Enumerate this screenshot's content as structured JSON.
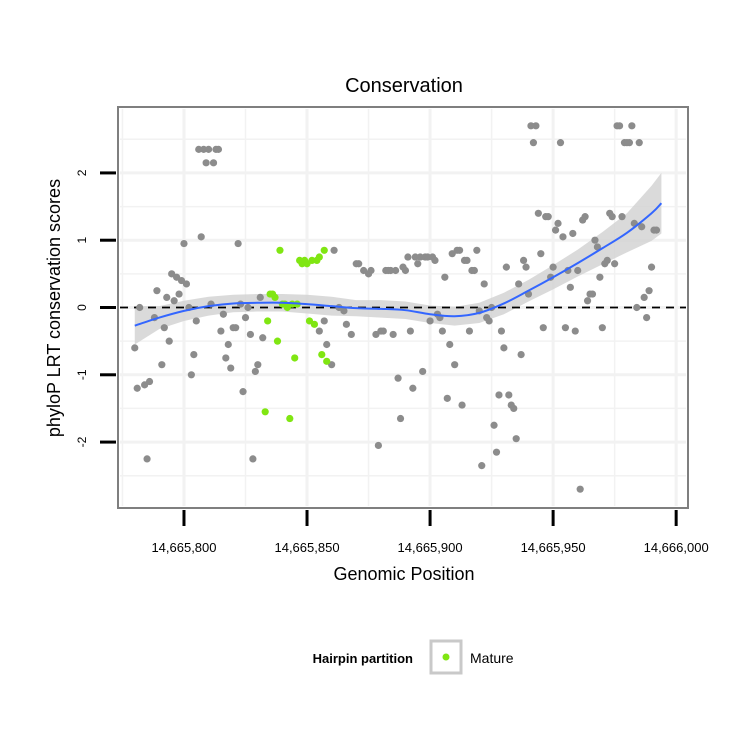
{
  "chart_data": {
    "type": "scatter",
    "title": "Conservation",
    "xlabel": "Genomic Position",
    "ylabel": "phyloP LRT conservation scores",
    "xlim": [
      14665774,
      14666004
    ],
    "ylim": [
      -2.95,
      2.95
    ],
    "x_ticks": [
      14665800,
      14665850,
      14665900,
      14665950,
      14666000
    ],
    "x_tick_labels": [
      "14,665,800",
      "14,665,850",
      "14,665,900",
      "14,665,950",
      "14,666,000"
    ],
    "y_ticks": [
      2,
      1,
      0,
      -1,
      -2
    ],
    "y_tick_labels": [
      "2",
      "1",
      "0",
      "-1",
      "-2"
    ],
    "reference_line": {
      "y": 0,
      "style": "dashed",
      "color": "#000000"
    },
    "colors": {
      "panel_background": "#ffffff",
      "grid": "#f2f2f2",
      "other_points": "#8c8c8c",
      "mature_points": "#80e612",
      "smooth_line": "#3366ff",
      "ribbon": "#d4d4d4"
    },
    "legend": {
      "title": "Hairpin partition",
      "entries": [
        "Mature"
      ],
      "placement": "bottom"
    },
    "series": [
      {
        "name": "Other",
        "points": [
          [
            14665780,
            -0.6
          ],
          [
            14665781,
            -1.2
          ],
          [
            14665782,
            0.0
          ],
          [
            14665784,
            -1.15
          ],
          [
            14665785,
            -2.25
          ],
          [
            14665786,
            -1.1
          ],
          [
            14665788,
            -0.15
          ],
          [
            14665789,
            0.25
          ],
          [
            14665791,
            -0.85
          ],
          [
            14665792,
            -0.3
          ],
          [
            14665793,
            0.15
          ],
          [
            14665794,
            -0.5
          ],
          [
            14665795,
            0.5
          ],
          [
            14665796,
            0.1
          ],
          [
            14665797,
            0.45
          ],
          [
            14665798,
            0.2
          ],
          [
            14665799,
            0.4
          ],
          [
            14665800,
            0.95
          ],
          [
            14665801,
            0.35
          ],
          [
            14665802,
            0.0
          ],
          [
            14665803,
            -1.0
          ],
          [
            14665804,
            -0.7
          ],
          [
            14665805,
            -0.2
          ],
          [
            14665806,
            2.35
          ],
          [
            14665807,
            1.05
          ],
          [
            14665808,
            2.35
          ],
          [
            14665809,
            2.15
          ],
          [
            14665810,
            2.35
          ],
          [
            14665811,
            0.05
          ],
          [
            14665812,
            2.15
          ],
          [
            14665813,
            2.35
          ],
          [
            14665814,
            2.35
          ],
          [
            14665815,
            -0.35
          ],
          [
            14665816,
            -0.1
          ],
          [
            14665817,
            -0.75
          ],
          [
            14665818,
            -0.55
          ],
          [
            14665819,
            -0.9
          ],
          [
            14665820,
            -0.3
          ],
          [
            14665821,
            -0.3
          ],
          [
            14665822,
            0.95
          ],
          [
            14665823,
            0.05
          ],
          [
            14665824,
            -1.25
          ],
          [
            14665825,
            -0.15
          ],
          [
            14665826,
            0.0
          ],
          [
            14665827,
            -0.4
          ],
          [
            14665828,
            -2.25
          ],
          [
            14665829,
            -0.95
          ],
          [
            14665830,
            -0.85
          ],
          [
            14665831,
            0.15
          ],
          [
            14665832,
            -0.45
          ],
          [
            14665855,
            -0.35
          ],
          [
            14665857,
            -0.2
          ],
          [
            14665858,
            -0.55
          ],
          [
            14665860,
            -0.85
          ],
          [
            14665861,
            0.85
          ],
          [
            14665863,
            0.0
          ],
          [
            14665865,
            -0.05
          ],
          [
            14665866,
            -0.25
          ],
          [
            14665868,
            -0.4
          ],
          [
            14665870,
            0.65
          ],
          [
            14665871,
            0.65
          ],
          [
            14665873,
            0.55
          ],
          [
            14665875,
            0.5
          ],
          [
            14665876,
            0.55
          ],
          [
            14665878,
            -0.4
          ],
          [
            14665879,
            -2.05
          ],
          [
            14665880,
            -0.35
          ],
          [
            14665881,
            -0.35
          ],
          [
            14665882,
            0.55
          ],
          [
            14665883,
            0.55
          ],
          [
            14665884,
            0.55
          ],
          [
            14665885,
            -0.4
          ],
          [
            14665886,
            0.55
          ],
          [
            14665887,
            -1.05
          ],
          [
            14665888,
            -1.65
          ],
          [
            14665889,
            0.6
          ],
          [
            14665890,
            0.55
          ],
          [
            14665891,
            0.75
          ],
          [
            14665892,
            -0.35
          ],
          [
            14665893,
            -1.2
          ],
          [
            14665894,
            0.75
          ],
          [
            14665895,
            0.65
          ],
          [
            14665896,
            0.75
          ],
          [
            14665897,
            -0.95
          ],
          [
            14665898,
            0.75
          ],
          [
            14665899,
            0.75
          ],
          [
            14665900,
            -0.2
          ],
          [
            14665901,
            0.75
          ],
          [
            14665902,
            0.7
          ],
          [
            14665903,
            -0.1
          ],
          [
            14665904,
            -0.15
          ],
          [
            14665905,
            -0.35
          ],
          [
            14665906,
            0.45
          ],
          [
            14665907,
            -1.35
          ],
          [
            14665908,
            -0.55
          ],
          [
            14665909,
            0.8
          ],
          [
            14665910,
            -0.85
          ],
          [
            14665911,
            0.85
          ],
          [
            14665912,
            0.85
          ],
          [
            14665913,
            -1.45
          ],
          [
            14665914,
            0.7
          ],
          [
            14665915,
            0.7
          ],
          [
            14665916,
            -0.35
          ],
          [
            14665917,
            0.55
          ],
          [
            14665918,
            0.55
          ],
          [
            14665919,
            0.85
          ],
          [
            14665920,
            -0.05
          ],
          [
            14665921,
            -2.35
          ],
          [
            14665922,
            0.35
          ],
          [
            14665923,
            -0.15
          ],
          [
            14665924,
            -0.2
          ],
          [
            14665925,
            0.0
          ],
          [
            14665926,
            -1.75
          ],
          [
            14665927,
            -2.15
          ],
          [
            14665928,
            -1.3
          ],
          [
            14665929,
            -0.35
          ],
          [
            14665930,
            -0.6
          ],
          [
            14665931,
            0.6
          ],
          [
            14665932,
            -1.3
          ],
          [
            14665933,
            -1.45
          ],
          [
            14665934,
            -1.5
          ],
          [
            14665935,
            -1.95
          ],
          [
            14665936,
            0.35
          ],
          [
            14665937,
            -0.7
          ],
          [
            14665938,
            0.7
          ],
          [
            14665939,
            0.6
          ],
          [
            14665940,
            0.2
          ],
          [
            14665941,
            2.7
          ],
          [
            14665942,
            2.45
          ],
          [
            14665943,
            2.7
          ],
          [
            14665944,
            1.4
          ],
          [
            14665945,
            0.8
          ],
          [
            14665946,
            -0.3
          ],
          [
            14665947,
            1.35
          ],
          [
            14665948,
            1.35
          ],
          [
            14665949,
            0.45
          ],
          [
            14665950,
            0.6
          ],
          [
            14665951,
            1.15
          ],
          [
            14665952,
            1.25
          ],
          [
            14665953,
            2.45
          ],
          [
            14665954,
            1.05
          ],
          [
            14665955,
            -0.3
          ],
          [
            14665956,
            0.55
          ],
          [
            14665957,
            0.3
          ],
          [
            14665958,
            1.1
          ],
          [
            14665959,
            -0.35
          ],
          [
            14665960,
            0.55
          ],
          [
            14665961,
            -2.7
          ],
          [
            14665962,
            1.3
          ],
          [
            14665963,
            1.35
          ],
          [
            14665964,
            0.1
          ],
          [
            14665965,
            0.2
          ],
          [
            14665966,
            0.2
          ],
          [
            14665967,
            1.0
          ],
          [
            14665968,
            0.9
          ],
          [
            14665969,
            0.45
          ],
          [
            14665970,
            -0.3
          ],
          [
            14665971,
            0.65
          ],
          [
            14665972,
            0.7
          ],
          [
            14665973,
            1.4
          ],
          [
            14665974,
            1.35
          ],
          [
            14665975,
            0.65
          ],
          [
            14665976,
            2.7
          ],
          [
            14665977,
            2.7
          ],
          [
            14665978,
            1.35
          ],
          [
            14665979,
            2.45
          ],
          [
            14665980,
            2.45
          ],
          [
            14665981,
            2.45
          ],
          [
            14665982,
            2.7
          ],
          [
            14665983,
            1.25
          ],
          [
            14665984,
            0.0
          ],
          [
            14665985,
            2.45
          ],
          [
            14665986,
            1.2
          ],
          [
            14665987,
            0.15
          ],
          [
            14665988,
            -0.15
          ],
          [
            14665989,
            0.25
          ],
          [
            14665990,
            0.6
          ],
          [
            14665991,
            1.15
          ],
          [
            14665992,
            1.15
          ]
        ]
      },
      {
        "name": "Mature",
        "points": [
          [
            14665833,
            -1.55
          ],
          [
            14665834,
            -0.2
          ],
          [
            14665835,
            0.2
          ],
          [
            14665836,
            0.2
          ],
          [
            14665837,
            0.15
          ],
          [
            14665838,
            -0.5
          ],
          [
            14665839,
            0.85
          ],
          [
            14665840,
            0.05
          ],
          [
            14665841,
            0.05
          ],
          [
            14665842,
            0.0
          ],
          [
            14665843,
            -1.65
          ],
          [
            14665844,
            0.05
          ],
          [
            14665845,
            -0.75
          ],
          [
            14665846,
            0.05
          ],
          [
            14665847,
            0.7
          ],
          [
            14665848,
            0.65
          ],
          [
            14665849,
            0.7
          ],
          [
            14665850,
            0.65
          ],
          [
            14665851,
            -0.2
          ],
          [
            14665852,
            0.7
          ],
          [
            14665853,
            -0.25
          ],
          [
            14665854,
            0.7
          ],
          [
            14665855,
            0.75
          ],
          [
            14665856,
            -0.7
          ],
          [
            14665857,
            0.85
          ],
          [
            14665858,
            -0.8
          ]
        ]
      }
    ],
    "smooth": {
      "x": [
        14665780,
        14665790,
        14665800,
        14665810,
        14665820,
        14665830,
        14665840,
        14665850,
        14665860,
        14665870,
        14665880,
        14665890,
        14665900,
        14665910,
        14665920,
        14665930,
        14665940,
        14665950,
        14665960,
        14665970,
        14665980,
        14665990,
        14665994
      ],
      "y": [
        -0.27,
        -0.15,
        -0.05,
        0.02,
        0.06,
        0.07,
        0.07,
        0.05,
        0.02,
        -0.01,
        -0.02,
        -0.04,
        -0.1,
        -0.13,
        -0.08,
        0.06,
        0.25,
        0.45,
        0.66,
        0.88,
        1.11,
        1.4,
        1.55
      ],
      "lower": [
        -0.55,
        -0.32,
        -0.2,
        -0.12,
        -0.07,
        -0.06,
        -0.06,
        -0.09,
        -0.12,
        -0.13,
        -0.15,
        -0.17,
        -0.23,
        -0.27,
        -0.23,
        -0.1,
        0.09,
        0.27,
        0.46,
        0.64,
        0.82,
        0.99,
        1.1
      ],
      "upper": [
        0.02,
        0.02,
        0.1,
        0.16,
        0.19,
        0.2,
        0.2,
        0.19,
        0.16,
        0.11,
        0.11,
        0.09,
        0.03,
        0.01,
        0.07,
        0.22,
        0.41,
        0.63,
        0.86,
        1.12,
        1.4,
        1.81,
        2.0
      ]
    }
  }
}
